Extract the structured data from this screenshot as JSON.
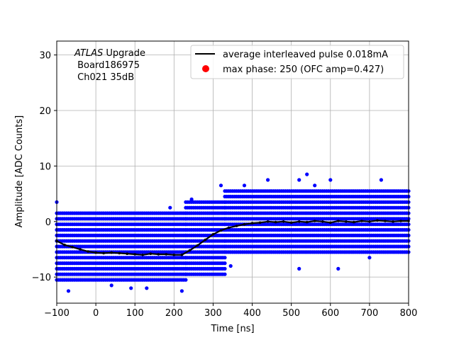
{
  "chart_data": {
    "type": "scatter",
    "xlabel": "Time [ns]",
    "ylabel": "Amplitude [ADC Counts]",
    "xlim": [
      -100,
      800
    ],
    "ylim": [
      -14.7,
      32.5
    ],
    "xticks": [
      -100,
      0,
      100,
      200,
      300,
      400,
      500,
      600,
      700,
      800
    ],
    "yticks": [
      -10,
      0,
      10,
      20,
      30
    ],
    "xtick_labels": [
      "−100",
      "0",
      "100",
      "200",
      "300",
      "400",
      "500",
      "600",
      "700",
      "800"
    ],
    "ytick_labels": [
      "−10",
      "0",
      "10",
      "20",
      "30"
    ],
    "grid": true,
    "legend_position": "top-right",
    "annotation": {
      "italic": "ATLAS",
      "line1_rest": " Upgrade",
      "line2": " Board186975",
      "line3": " Ch021 35dB"
    },
    "series": [
      {
        "name": "average interleaved pulse 0.018mA",
        "kind": "line",
        "color": "#000000",
        "x": [
          -100,
          -80,
          -60,
          -40,
          -20,
          0,
          20,
          40,
          60,
          80,
          100,
          120,
          140,
          160,
          180,
          200,
          220,
          240,
          260,
          280,
          300,
          320,
          340,
          360,
          380,
          400,
          420,
          440,
          460,
          480,
          500,
          520,
          540,
          560,
          580,
          600,
          620,
          640,
          660,
          680,
          700,
          720,
          740,
          760,
          780,
          800
        ],
        "y": [
          -3.5,
          -4.2,
          -4.6,
          -5.0,
          -5.4,
          -5.6,
          -5.7,
          -5.6,
          -5.7,
          -5.8,
          -5.9,
          -6.0,
          -5.8,
          -5.9,
          -5.9,
          -6.0,
          -6.0,
          -5.2,
          -4.3,
          -3.3,
          -2.3,
          -1.6,
          -1.1,
          -0.8,
          -0.5,
          -0.3,
          -0.2,
          0.0,
          -0.1,
          0.0,
          -0.2,
          0.0,
          -0.1,
          0.1,
          0.0,
          -0.2,
          0.1,
          0.0,
          -0.1,
          0.1,
          0.0,
          0.2,
          0.1,
          0.0,
          0.1,
          0.1
        ]
      },
      {
        "name": "max phase: 250 (OFC amp=0.427)",
        "kind": "marker",
        "color": "#ff0000",
        "x": [],
        "y": []
      },
      {
        "name": "",
        "kind": "scatter",
        "color": "#0000ff",
        "description_bands": [
          {
            "x_from": -100,
            "x_to": 230,
            "y_levels": [
              -10.5,
              -9.5,
              -8.5,
              -7.5,
              -6.5,
              -5.5,
              -4.5,
              -3.5,
              -2.5,
              -1.5,
              -0.5,
              0.5,
              1.5
            ]
          },
          {
            "x_from": 230,
            "x_to": 330,
            "y_levels": [
              -9.5,
              -8.5,
              -7.5,
              -6.5,
              -5.5,
              -4.5,
              -3.5,
              -2.5,
              -1.5,
              -0.5,
              0.5,
              1.5,
              2.5,
              3.5
            ]
          },
          {
            "x_from": 330,
            "x_to": 800,
            "y_levels": [
              -5.5,
              -4.5,
              -3.5,
              -2.5,
              -1.5,
              -0.5,
              0.5,
              1.5,
              2.5,
              3.5,
              4.5,
              5.5
            ]
          }
        ],
        "outliers": [
          {
            "x": -100,
            "y": 3.5
          },
          {
            "x": -70,
            "y": -12.5
          },
          {
            "x": 40,
            "y": -11.5
          },
          {
            "x": 90,
            "y": -12.0
          },
          {
            "x": 130,
            "y": -12.0
          },
          {
            "x": 220,
            "y": -12.5
          },
          {
            "x": 190,
            "y": 2.5
          },
          {
            "x": 245,
            "y": 4.0
          },
          {
            "x": 320,
            "y": 6.5
          },
          {
            "x": 345,
            "y": -8.0
          },
          {
            "x": 380,
            "y": 6.5
          },
          {
            "x": 440,
            "y": 7.5
          },
          {
            "x": 520,
            "y": 7.5
          },
          {
            "x": 540,
            "y": 8.5
          },
          {
            "x": 560,
            "y": 6.5
          },
          {
            "x": 600,
            "y": 7.5
          },
          {
            "x": 620,
            "y": -8.5
          },
          {
            "x": 700,
            "y": -6.5
          },
          {
            "x": 730,
            "y": 7.5
          },
          {
            "x": 520,
            "y": -8.5
          }
        ]
      }
    ]
  }
}
